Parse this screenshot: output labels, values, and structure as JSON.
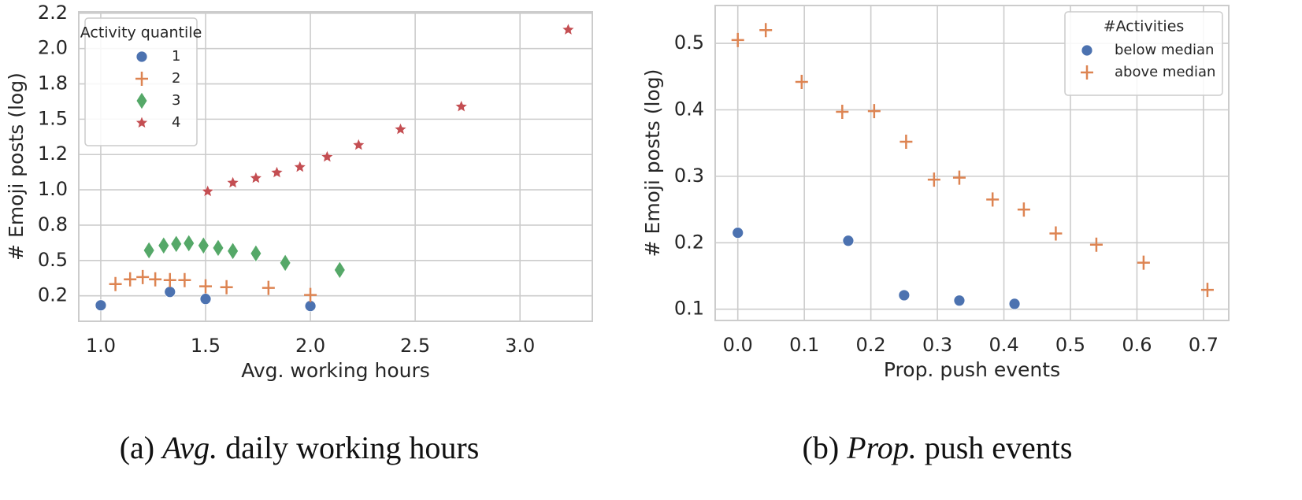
{
  "chart_data": [
    {
      "type": "scatter",
      "xlabel": "Avg. working hours",
      "ylabel": "# Emoji posts (log)",
      "xlim": [
        0.895,
        3.345
      ],
      "ylim": [
        0.07,
        2.26
      ],
      "xticks": [
        {
          "value": 1,
          "label": "1.0"
        },
        1.5,
        {
          "value": 2,
          "label": "2.0"
        },
        2.5,
        {
          "value": 3,
          "label": "3.0"
        }
      ],
      "yticks": [
        {
          "value": 0.25,
          "label": "0.2"
        },
        0.5,
        {
          "value": 0.75,
          "label": "0.8"
        },
        {
          "value": 1,
          "label": "1.0"
        },
        {
          "value": 1.25,
          "label": "1.2"
        },
        1.5,
        {
          "value": 1.75,
          "label": "1.8"
        },
        {
          "value": 2,
          "label": "2.0"
        },
        {
          "value": 2.25,
          "label": "2.2"
        }
      ],
      "grid": true,
      "legend_title": "Activity quantile",
      "legend_loc": "upper left",
      "series": [
        {
          "name": "1",
          "color": "#4c72b0",
          "marker": "o",
          "x": [
            1.0,
            1.33,
            1.5,
            2.0
          ],
          "values": [
            0.183,
            0.278,
            0.228,
            0.178
          ]
        },
        {
          "name": "2",
          "color": "#dd8452",
          "marker": "+",
          "x": [
            1.07,
            1.14,
            1.2,
            1.26,
            1.33,
            1.4,
            1.5,
            1.6,
            1.8,
            2.0
          ],
          "values": [
            0.333,
            0.367,
            0.383,
            0.367,
            0.361,
            0.361,
            0.317,
            0.311,
            0.306,
            0.256
          ]
        },
        {
          "name": "3",
          "color": "#55a868",
          "marker": "d",
          "x": [
            1.23,
            1.3,
            1.36,
            1.42,
            1.49,
            1.56,
            1.63,
            1.74,
            1.88,
            2.14
          ],
          "values": [
            0.572,
            0.606,
            0.617,
            0.622,
            0.606,
            0.589,
            0.567,
            0.55,
            0.483,
            0.433
          ]
        },
        {
          "name": "4",
          "color": "#c44e52",
          "marker": "*",
          "x": [
            1.51,
            1.63,
            1.74,
            1.84,
            1.95,
            2.08,
            2.23,
            2.43,
            2.72,
            3.23
          ],
          "values": [
            0.989,
            1.05,
            1.083,
            1.122,
            1.161,
            1.233,
            1.317,
            1.428,
            1.589,
            2.133
          ]
        }
      ]
    },
    {
      "type": "scatter",
      "xlabel": "Prop. push events",
      "ylabel": "# Emoji posts (log)",
      "xlim": [
        -0.034,
        0.738
      ],
      "ylim": [
        0.083,
        0.557
      ],
      "xticks": [
        {
          "value": 0,
          "label": "0.0"
        },
        0.1,
        0.2,
        0.3,
        0.4,
        0.5,
        0.6,
        0.7
      ],
      "yticks": [
        0.1,
        0.2,
        0.3,
        0.4,
        0.5
      ],
      "grid": true,
      "legend_title": "#Activities",
      "legend_loc": "upper right",
      "series": [
        {
          "name": "below median",
          "color": "#4c72b0",
          "marker": "o",
          "x": [
            0.0,
            0.166,
            0.25,
            0.333,
            0.416
          ],
          "values": [
            0.215,
            0.203,
            0.121,
            0.113,
            0.108
          ]
        },
        {
          "name": "above median",
          "color": "#dd8452",
          "marker": "+",
          "x": [
            0.0,
            0.042,
            0.096,
            0.157,
            0.205,
            0.253,
            0.295,
            0.333,
            0.383,
            0.43,
            0.478,
            0.539,
            0.61,
            0.706
          ],
          "values": [
            0.505,
            0.52,
            0.442,
            0.397,
            0.398,
            0.352,
            0.295,
            0.298,
            0.265,
            0.25,
            0.214,
            0.197,
            0.17,
            0.129
          ]
        }
      ]
    }
  ],
  "captions": [
    {
      "label": "(a)",
      "emphasis": "Avg.",
      "text": "daily working hours"
    },
    {
      "label": "(b)",
      "emphasis": "Prop.",
      "text": "push events"
    }
  ]
}
